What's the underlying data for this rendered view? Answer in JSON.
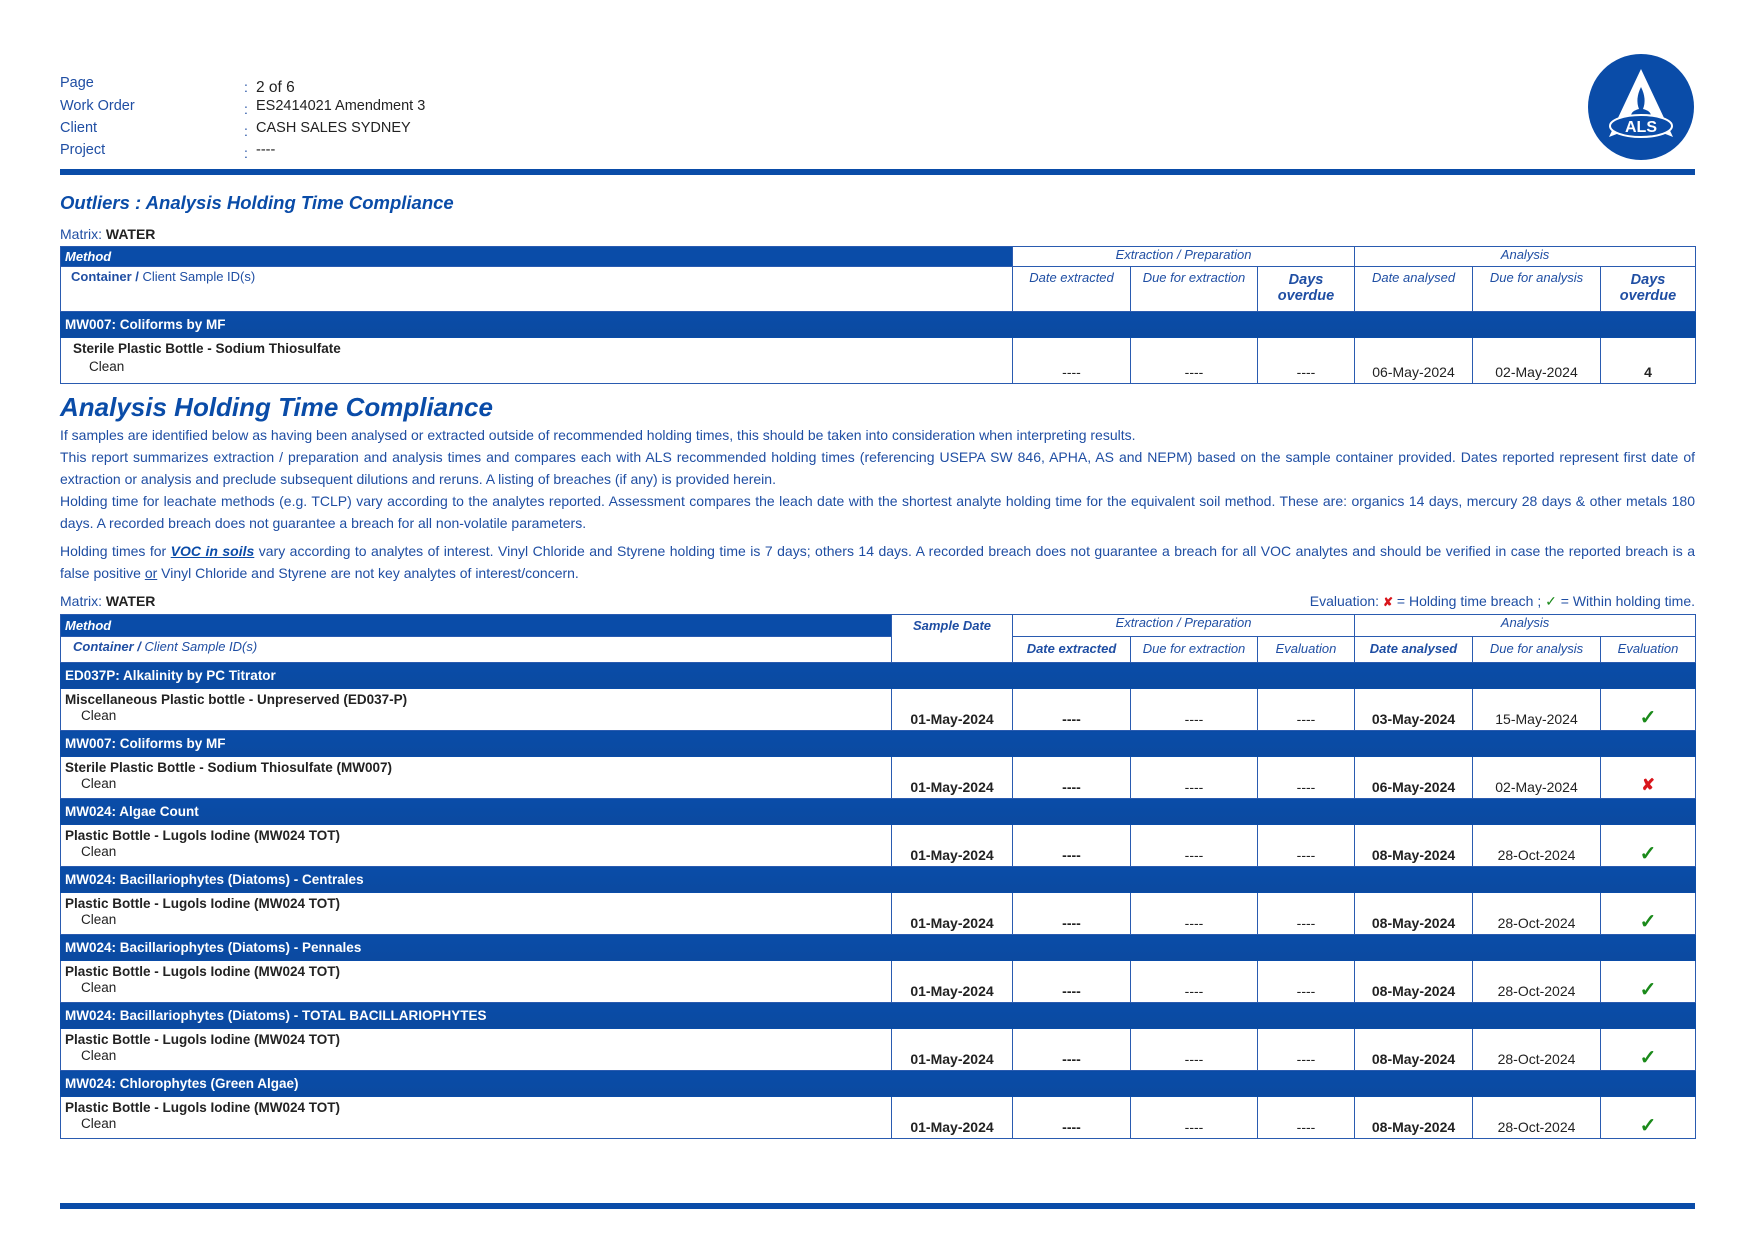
{
  "header": {
    "fields": [
      {
        "label": "Page",
        "value": "2 of 6"
      },
      {
        "label": "Work Order",
        "value": "ES2414021 Amendment 3"
      },
      {
        "label": "Client",
        "value": "CASH SALES SYDNEY"
      },
      {
        "label": "Project",
        "value": "----"
      }
    ],
    "colon": ":",
    "logo_text": "ALS",
    "brand_color": "#0a4ca8"
  },
  "outliers": {
    "title": "Outliers : Analysis Holding Time Compliance",
    "matrix_label": "Matrix:",
    "matrix_value": "WATER",
    "headers": {
      "method": "Method",
      "container_a": "Container /",
      "container_b": " Client Sample ID(s)",
      "extraction_group": "Extraction / Preparation",
      "analysis_group": "Analysis",
      "date_extracted": "Date extracted",
      "due_extraction": "Due for extraction",
      "days_overdue": "Days overdue",
      "date_analysed": "Date analysed",
      "due_analysis": "Due for analysis"
    },
    "method": "MW007: Coliforms by MF",
    "container": "Sterile Plastic Bottle - Sodium Thiosulfate",
    "sample": "Clean",
    "date_extracted": "----",
    "due_extraction": "----",
    "ext_days_overdue": "----",
    "date_analysed": "06-May-2024",
    "due_analysis": "02-May-2024",
    "ana_days_overdue": "4"
  },
  "compliance": {
    "title": "Analysis Holding Time Compliance",
    "paragraphs": {
      "p1": "If samples are identified below as having been analysed or extracted outside of recommended holding times, this should be taken into consideration when interpreting results.",
      "p2": "This report summarizes extraction / preparation and analysis times and compares each with ALS recommended holding times (referencing USEPA SW 846, APHA, AS and NEPM) based on the sample container provided. Dates reported represent first date of extraction or analysis and preclude subsequent dilutions and reruns. A listing of breaches (if any) is provided herein.",
      "p3": "Holding time for leachate methods (e.g. TCLP) vary according to the analytes reported. Assessment compares the leach date with the shortest analyte holding time for the equivalent soil method. These are: organics 14 days, mercury 28 days & other metals 180 days. A recorded breach does not guarantee a breach for all non-volatile parameters.",
      "p4_a": "Holding times for ",
      "p4_link": "VOC in soils",
      "p4_b": " vary according to analytes of interest. Vinyl Chloride and Styrene holding time is 7 days; others 14 days. A recorded breach does not guarantee a breach for all VOC analytes and should be verified in case the reported breach is a false positive ",
      "p4_or": "or",
      "p4_c": " Vinyl Chloride and Styrene are not key analytes of interest/concern."
    },
    "matrix_label": "Matrix:",
    "matrix_value": "WATER",
    "legend": {
      "prefix": "Evaluation:",
      "breach_symbol": "✘",
      "breach_text": " = Holding time breach ; ",
      "ok_symbol": "✓",
      "ok_text": " = Within holding time."
    },
    "colors": {
      "ok": "#1a8a1a",
      "breach": "#d9161c"
    },
    "headers": {
      "method": "Method",
      "container_a": "Container /",
      "container_b": " Client Sample ID(s)",
      "sample_date": "Sample Date",
      "extraction_group": "Extraction / Preparation",
      "analysis_group": "Analysis",
      "date_extracted": "Date extracted",
      "due_extraction": "Due for extraction",
      "evaluation_ext": "Evaluation",
      "date_analysed": "Date analysed",
      "due_analysis": "Due for analysis",
      "evaluation_ana": "Evaluation"
    },
    "rows": [
      {
        "method": "ED037P: Alkalinity by PC Titrator",
        "container": "Miscellaneous Plastic bottle - Unpreserved (ED037-P)",
        "sample": "Clean",
        "sample_date": "01-May-2024",
        "date_extracted": "----",
        "due_extraction": "----",
        "eval_ext": "----",
        "date_analysed": "03-May-2024",
        "due_analysis": "15-May-2024",
        "eval_ana": "ok"
      },
      {
        "method": "MW007: Coliforms by MF",
        "container": "Sterile Plastic Bottle - Sodium Thiosulfate (MW007)",
        "sample": "Clean",
        "sample_date": "01-May-2024",
        "date_extracted": "----",
        "due_extraction": "----",
        "eval_ext": "----",
        "date_analysed": "06-May-2024",
        "due_analysis": "02-May-2024",
        "eval_ana": "breach"
      },
      {
        "method": "MW024: Algae Count",
        "container": "Plastic Bottle - Lugols Iodine (MW024  TOT)",
        "sample": "Clean",
        "sample_date": "01-May-2024",
        "date_extracted": "----",
        "due_extraction": "----",
        "eval_ext": "----",
        "date_analysed": "08-May-2024",
        "due_analysis": "28-Oct-2024",
        "eval_ana": "ok"
      },
      {
        "method": "MW024: Bacillariophytes (Diatoms) - Centrales",
        "container": "Plastic Bottle - Lugols Iodine (MW024  TOT)",
        "sample": "Clean",
        "sample_date": "01-May-2024",
        "date_extracted": "----",
        "due_extraction": "----",
        "eval_ext": "----",
        "date_analysed": "08-May-2024",
        "due_analysis": "28-Oct-2024",
        "eval_ana": "ok"
      },
      {
        "method": "MW024: Bacillariophytes (Diatoms) - Pennales",
        "container": "Plastic Bottle - Lugols Iodine (MW024  TOT)",
        "sample": "Clean",
        "sample_date": "01-May-2024",
        "date_extracted": "----",
        "due_extraction": "----",
        "eval_ext": "----",
        "date_analysed": "08-May-2024",
        "due_analysis": "28-Oct-2024",
        "eval_ana": "ok"
      },
      {
        "method": "MW024: Bacillariophytes (Diatoms) - TOTAL BACILLARIOPHYTES",
        "container": "Plastic Bottle - Lugols Iodine (MW024  TOT)",
        "sample": "Clean",
        "sample_date": "01-May-2024",
        "date_extracted": "----",
        "due_extraction": "----",
        "eval_ext": "----",
        "date_analysed": "08-May-2024",
        "due_analysis": "28-Oct-2024",
        "eval_ana": "ok"
      },
      {
        "method": "MW024: Chlorophytes (Green Algae)",
        "container": "Plastic Bottle - Lugols Iodine (MW024  TOT)",
        "sample": "Clean",
        "sample_date": "01-May-2024",
        "date_extracted": "----",
        "due_extraction": "----",
        "eval_ext": "----",
        "date_analysed": "08-May-2024",
        "due_analysis": "28-Oct-2024",
        "eval_ana": "ok"
      }
    ]
  }
}
